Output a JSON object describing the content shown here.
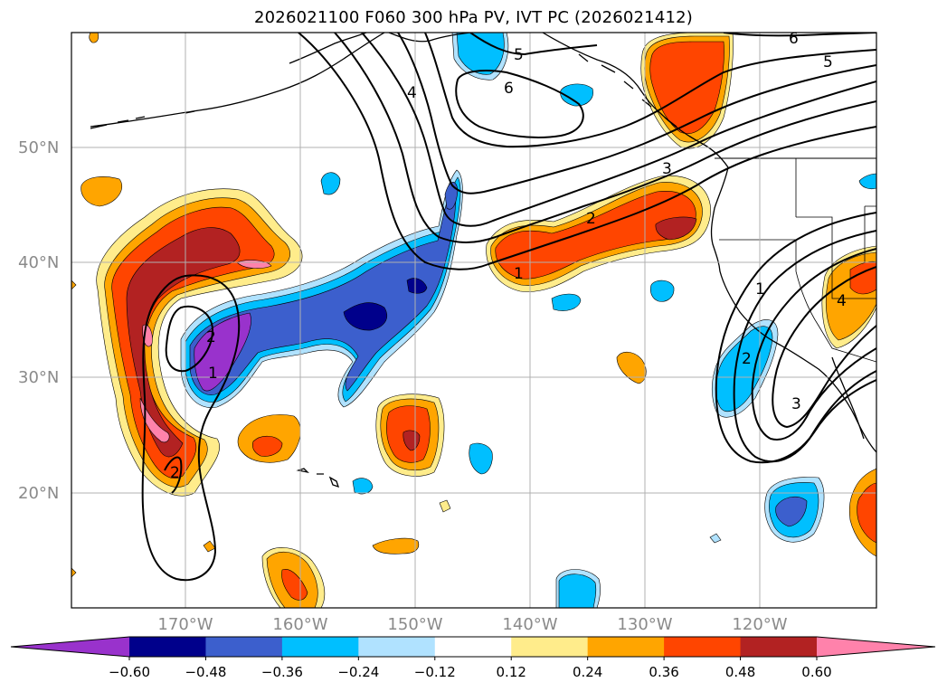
{
  "title": "2026021100 F060 300 hPa PV, IVT PC (2026021412)",
  "lat_labels": [
    "50°N",
    "40°N",
    "30°N",
    "20°N"
  ],
  "lon_labels": [
    "170°W",
    "160°W",
    "150°W",
    "140°W",
    "130°W",
    "120°W"
  ],
  "colorbar": {
    "colors": [
      "#9932cc",
      "#00008b",
      "#3c5fcd",
      "#00bfff",
      "#b0e2ff",
      "#ffffff",
      "#ffec8b",
      "#ffa500",
      "#ff4500",
      "#b22222",
      "#ff82ab"
    ],
    "tick_labels": [
      "−0.60",
      "−0.48",
      "−0.36",
      "−0.24",
      "−0.12",
      "0.12",
      "0.24",
      "0.36",
      "0.48",
      "0.60"
    ]
  },
  "contour_labels": [
    "1",
    "2",
    "3",
    "4",
    "5",
    "6",
    "1",
    "2",
    "3",
    "1",
    "2",
    "4",
    "6",
    "5",
    "2"
  ]
}
